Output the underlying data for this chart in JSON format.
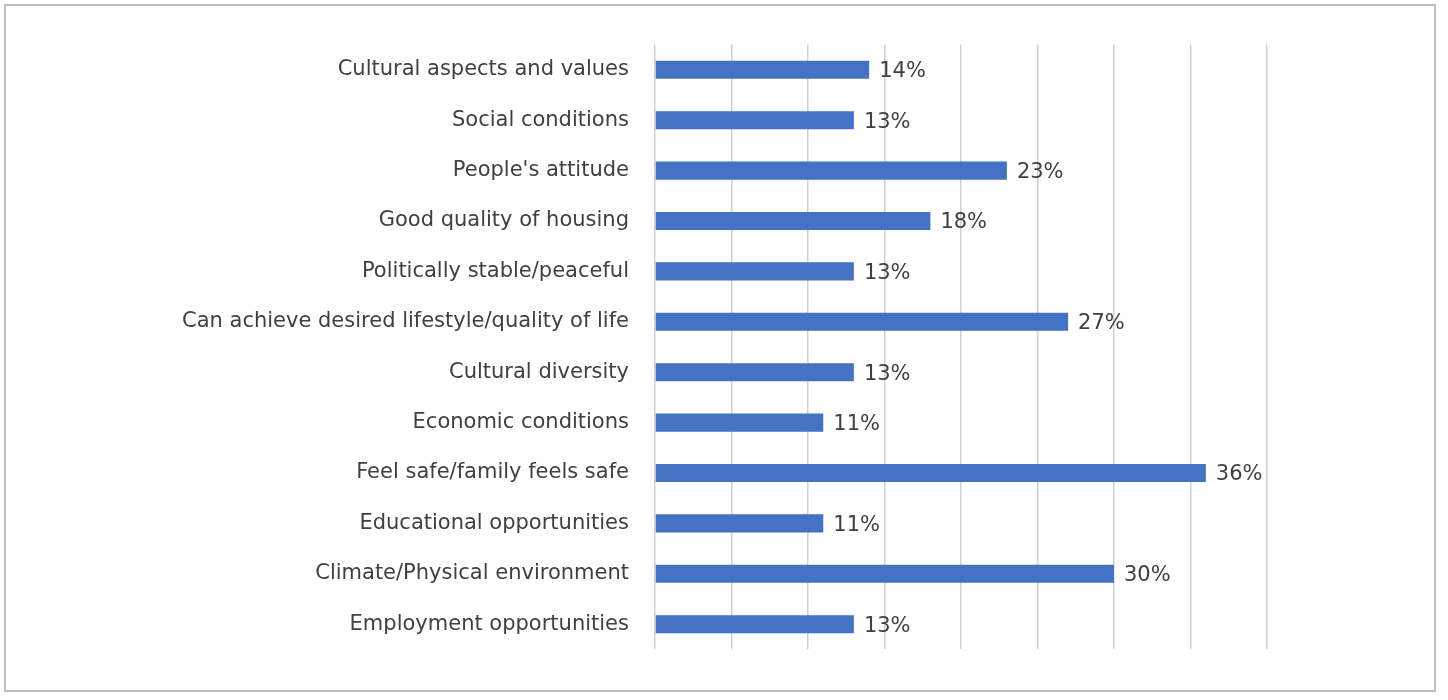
{
  "chart_data": {
    "type": "bar",
    "orientation": "horizontal",
    "categories": [
      "Cultural aspects and values",
      "Social conditions",
      "People's attitude",
      "Good quality of housing",
      "Politically stable/peaceful",
      "Can achieve desired lifestyle/quality of life",
      "Cultural diversity",
      "Economic conditions",
      "Feel safe/family feels safe",
      "Educational opportunities",
      "Climate/Physical environment",
      "Employment opportunities"
    ],
    "values": [
      14,
      13,
      23,
      18,
      13,
      27,
      13,
      11,
      36,
      11,
      30,
      13
    ],
    "value_labels": [
      "14%",
      "13%",
      "23%",
      "18%",
      "13%",
      "27%",
      "13%",
      "11%",
      "36%",
      "11%",
      "30%",
      "13%"
    ],
    "color": "#4472c4",
    "xlim": [
      0,
      40
    ],
    "xticks": [
      {
        "value": 0,
        "label": null
      },
      {
        "value": 5,
        "label": null
      },
      {
        "value": 10,
        "label": null
      },
      {
        "value": 15,
        "label": null
      },
      {
        "value": 20,
        "label": null
      },
      {
        "value": 25,
        "label": null
      },
      {
        "value": 30,
        "label": null
      },
      {
        "value": 35,
        "label": null
      },
      {
        "value": 40,
        "label": null
      }
    ],
    "grid": "x",
    "tick_labels": "y",
    "legend": false
  }
}
